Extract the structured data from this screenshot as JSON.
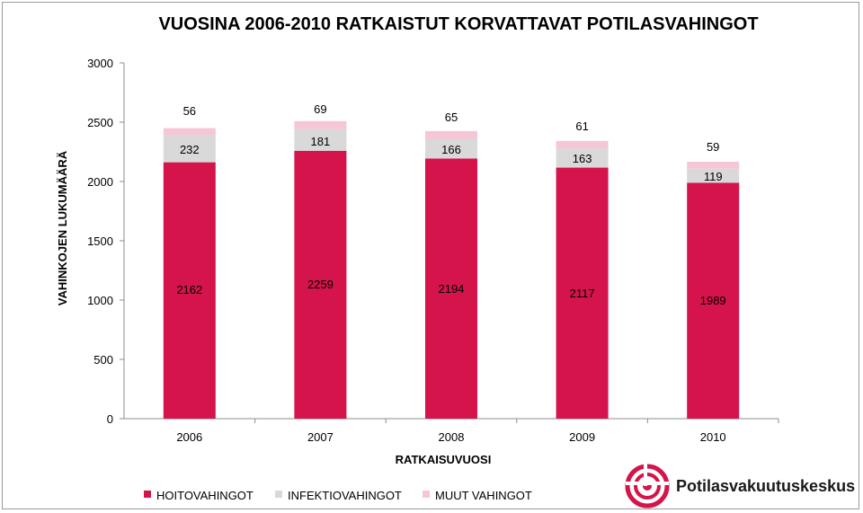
{
  "chart_data": {
    "type": "bar",
    "stacked": true,
    "title": "VUOSINA 2006-2010 RATKAISTUT KORVATTAVAT POTILASVAHINGOT",
    "xlabel": "RATKAISUVUOSI",
    "ylabel": "VAHINKOJEN LUKUMÄÄRÄ",
    "ylim": [
      0,
      3000
    ],
    "yticks": [
      "0",
      "500",
      "1000",
      "1500",
      "2000",
      "2500",
      "3000"
    ],
    "categories": [
      "2006",
      "2007",
      "2008",
      "2009",
      "2010"
    ],
    "series": [
      {
        "name": "HOITOVAHINGOT",
        "color": "#d4144a",
        "values": [
          2162,
          2259,
          2194,
          2117,
          1989
        ],
        "labels": [
          "2162",
          "2259",
          "2194",
          "2117",
          "1989"
        ]
      },
      {
        "name": "INFEKTIOVAHINGOT",
        "color": "#d9d9d9",
        "values": [
          232,
          181,
          166,
          163,
          119
        ],
        "labels": [
          "232",
          "181",
          "166",
          "163",
          "119"
        ]
      },
      {
        "name": "MUUT VAHINGOT",
        "color": "#f7c6d6",
        "values": [
          56,
          69,
          65,
          61,
          59
        ],
        "labels": [
          "56",
          "69",
          "65",
          "61",
          "59"
        ]
      }
    ],
    "legend_position": "bottom-left",
    "grid": false
  },
  "logo": {
    "text": "Potilasvakuutuskeskus",
    "color": "#d4144a"
  }
}
